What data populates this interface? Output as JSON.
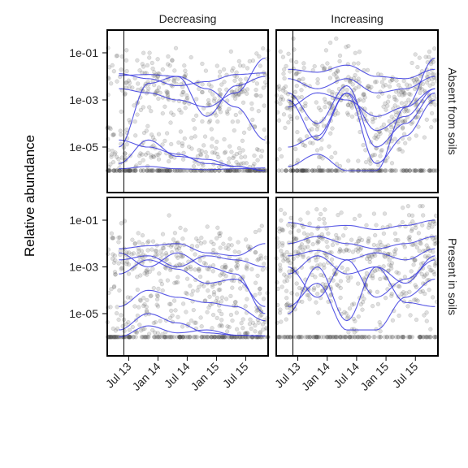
{
  "chart_data": {
    "type": "scatter",
    "ylabel": "Relative abundance",
    "xlabel": "",
    "y_scale": "log10",
    "y_ticks": [
      {
        "value": 0.1,
        "label": "1e-01"
      },
      {
        "value": 0.001,
        "label": "1e-03"
      },
      {
        "value": 1e-05,
        "label": "1e-05"
      }
    ],
    "x_ticks": [
      {
        "value": "2013-07",
        "label": "Jul 13"
      },
      {
        "value": "2014-01",
        "label": "Jan 14"
      },
      {
        "value": "2014-07",
        "label": "Jul 14"
      },
      {
        "value": "2015-01",
        "label": "Jan 15"
      },
      {
        "value": "2015-07",
        "label": "Jul 15"
      }
    ],
    "reference_line_x": "2013-06",
    "zero_floor_value": 1e-06,
    "columns": [
      "Decreasing",
      "Increasing"
    ],
    "rows": [
      "Absent from soils",
      "Present in soils"
    ],
    "point_color": "#444444",
    "line_color": "#3a3ae0",
    "panels": [
      {
        "col": "Decreasing",
        "row": "Absent from soils",
        "trends": [
          {
            "x": [
              "2013-05",
              "2013-11",
              "2014-05",
              "2014-11",
              "2015-05",
              "2015-11"
            ],
            "y": [
              0.013,
              0.008,
              0.004,
              0.006,
              0.012,
              0.014
            ]
          },
          {
            "x": [
              "2013-05",
              "2013-11",
              "2014-05",
              "2014-11",
              "2015-05",
              "2015-11"
            ],
            "y": [
              0.011,
              0.012,
              0.01,
              0.0002,
              0.004,
              0.01
            ]
          },
          {
            "x": [
              "2013-05",
              "2013-11",
              "2014-05",
              "2014-11",
              "2015-05",
              "2015-11"
            ],
            "y": [
              1e-05,
              0.005,
              0.01,
              0.003,
              0.0005,
              2e-05
            ]
          },
          {
            "x": [
              "2013-05",
              "2013-11",
              "2014-05",
              "2014-11",
              "2015-05",
              "2015-11"
            ],
            "y": [
              2e-06,
              2e-05,
              4e-06,
              3e-06,
              1.5e-06,
              1e-06
            ]
          },
          {
            "x": [
              "2013-05",
              "2013-11",
              "2014-05",
              "2014-11",
              "2015-05",
              "2015-11"
            ],
            "y": [
              1.2e-06,
              1.5e-06,
              1.2e-06,
              1.1e-06,
              1.2e-06,
              1.3e-06
            ]
          },
          {
            "x": [
              "2013-05",
              "2013-11",
              "2014-05",
              "2014-11",
              "2015-05",
              "2015-11"
            ],
            "y": [
              2e-05,
              1e-05,
              5e-06,
              2e-06,
              1.5e-06,
              1e-06
            ]
          },
          {
            "x": [
              "2013-05",
              "2013-11",
              "2014-05",
              "2014-11",
              "2015-05",
              "2015-11"
            ],
            "y": [
              0.003,
              0.002,
              0.001,
              0.0005,
              0.002,
              0.06
            ]
          }
        ]
      },
      {
        "col": "Increasing",
        "row": "Absent from soils",
        "trends": [
          {
            "x": [
              "2013-05",
              "2013-11",
              "2014-05",
              "2014-11",
              "2015-05",
              "2015-11"
            ],
            "y": [
              0.02,
              0.015,
              0.03,
              0.01,
              0.008,
              0.02
            ]
          },
          {
            "x": [
              "2013-05",
              "2013-11",
              "2014-05",
              "2014-11",
              "2015-05",
              "2015-11"
            ],
            "y": [
              0.008,
              0.003,
              0.008,
              0.002,
              0.003,
              0.01
            ]
          },
          {
            "x": [
              "2013-05",
              "2013-11",
              "2014-05",
              "2014-11",
              "2015-05",
              "2015-11"
            ],
            "y": [
              0.001,
              2e-05,
              0.002,
              5e-05,
              0.0002,
              0.003
            ]
          },
          {
            "x": [
              "2013-05",
              "2013-11",
              "2014-05",
              "2014-11",
              "2015-05",
              "2015-11"
            ],
            "y": [
              0.002,
              0.0001,
              0.004,
              1e-05,
              0.0001,
              0.002
            ]
          },
          {
            "x": [
              "2013-05",
              "2013-11",
              "2014-05",
              "2014-11",
              "2015-05",
              "2015-11"
            ],
            "y": [
              1.5e-06,
              5e-06,
              1e-06,
              1e-06,
              0.0005,
              0.06
            ]
          },
          {
            "x": [
              "2013-05",
              "2013-11",
              "2014-05",
              "2014-11",
              "2015-05",
              "2015-11"
            ],
            "y": [
              1e-05,
              3e-05,
              0.002,
              2e-06,
              3e-05,
              0.001
            ]
          },
          {
            "x": [
              "2013-05",
              "2013-11",
              "2014-05",
              "2014-11",
              "2015-05",
              "2015-11"
            ],
            "y": [
              0.0005,
              0.002,
              0.001,
              0.0002,
              0.0005,
              0.003
            ]
          }
        ]
      },
      {
        "col": "Decreasing",
        "row": "Present in soils",
        "trends": [
          {
            "x": [
              "2013-05",
              "2013-11",
              "2014-05",
              "2014-11",
              "2015-05",
              "2015-11"
            ],
            "y": [
              0.006,
              0.008,
              0.01,
              0.004,
              0.003,
              0.01
            ]
          },
          {
            "x": [
              "2013-05",
              "2013-11",
              "2014-05",
              "2014-11",
              "2015-05",
              "2015-11"
            ],
            "y": [
              0.002,
              0.003,
              0.001,
              0.003,
              0.002,
              0.001
            ]
          },
          {
            "x": [
              "2013-05",
              "2013-11",
              "2014-05",
              "2014-11",
              "2015-05",
              "2015-11"
            ],
            "y": [
              0.0005,
              0.002,
              0.0008,
              0.0002,
              0.0003,
              2e-05
            ]
          },
          {
            "x": [
              "2013-05",
              "2013-11",
              "2014-05",
              "2014-11",
              "2015-05",
              "2015-11"
            ],
            "y": [
              2e-05,
              0.0001,
              5e-05,
              3e-05,
              2e-05,
              5e-06
            ]
          },
          {
            "x": [
              "2013-05",
              "2013-11",
              "2014-05",
              "2014-11",
              "2015-05",
              "2015-11"
            ],
            "y": [
              1e-06,
              3e-06,
              1.5e-06,
              2e-06,
              1.2e-06,
              1.1e-06
            ]
          },
          {
            "x": [
              "2013-05",
              "2013-11",
              "2014-05",
              "2014-11",
              "2015-05",
              "2015-11"
            ],
            "y": [
              2e-06,
              1e-05,
              4e-06,
              1.5e-06,
              1.2e-06,
              1.1e-06
            ]
          },
          {
            "x": [
              "2013-05",
              "2013-11",
              "2014-05",
              "2014-11",
              "2015-05",
              "2015-11"
            ],
            "y": [
              0.004,
              0.001,
              0.004,
              0.001,
              0.0005,
              1e-05
            ]
          }
        ]
      },
      {
        "col": "Increasing",
        "row": "Present in soils",
        "trends": [
          {
            "x": [
              "2013-05",
              "2013-11",
              "2014-05",
              "2014-11",
              "2015-05",
              "2015-11"
            ],
            "y": [
              0.08,
              0.05,
              0.06,
              0.04,
              0.06,
              0.1
            ]
          },
          {
            "x": [
              "2013-05",
              "2013-11",
              "2014-05",
              "2014-11",
              "2015-05",
              "2015-11"
            ],
            "y": [
              0.01,
              0.02,
              0.01,
              0.006,
              0.01,
              0.02
            ]
          },
          {
            "x": [
              "2013-05",
              "2013-11",
              "2014-05",
              "2014-11",
              "2015-05",
              "2015-11"
            ],
            "y": [
              0.003,
              0.005,
              0.002,
              0.004,
              0.002,
              0.006
            ]
          },
          {
            "x": [
              "2013-05",
              "2013-11",
              "2014-05",
              "2014-11",
              "2015-05",
              "2015-11"
            ],
            "y": [
              0.001,
              5e-05,
              0.002,
              5e-05,
              0.0003,
              0.002
            ]
          },
          {
            "x": [
              "2013-05",
              "2013-11",
              "2014-05",
              "2014-11",
              "2015-05",
              "2015-11"
            ],
            "y": [
              1e-05,
              0.001,
              5e-06,
              0.001,
              3e-05,
              2e-05
            ]
          },
          {
            "x": [
              "2013-05",
              "2013-11",
              "2014-05",
              "2014-11",
              "2015-05",
              "2015-11"
            ],
            "y": [
              2e-05,
              0.0002,
              2e-06,
              2e-06,
              5e-05,
              0.0003
            ]
          },
          {
            "x": [
              "2013-05",
              "2013-11",
              "2014-05",
              "2014-11",
              "2015-05",
              "2015-11"
            ],
            "y": [
              0.0005,
              0.003,
              0.0005,
              0.001,
              0.0002,
              0.003
            ]
          }
        ]
      }
    ]
  }
}
